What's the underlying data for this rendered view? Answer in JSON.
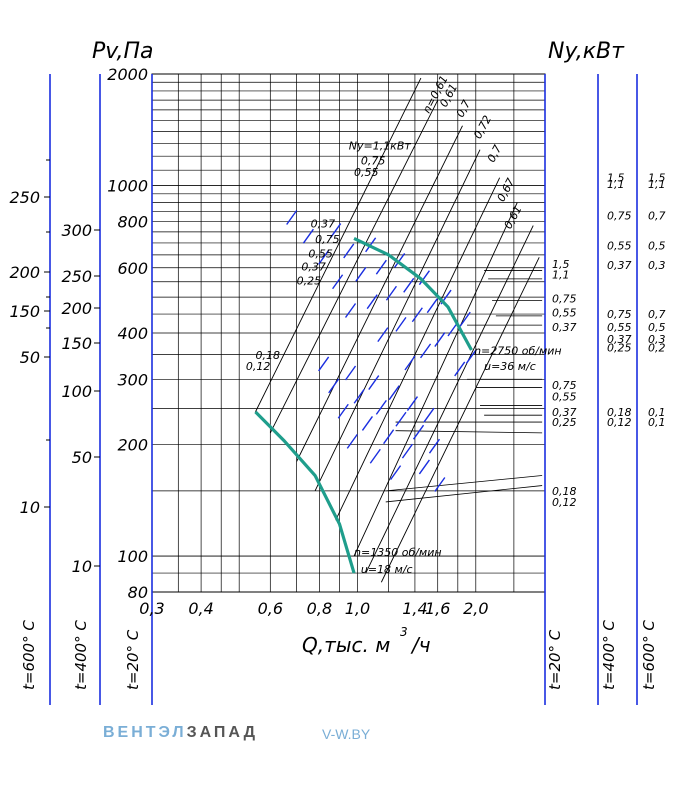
{
  "chart_data": {
    "type": "line",
    "y_title": "Pv,Па",
    "y2_title": "Ny,кВт",
    "x_title": "Q,тыс. м",
    "x_title_sup": "3",
    "x_title_tail": "/ч",
    "x_scale": "log",
    "y_scale": "log",
    "xlim": [
      0.3,
      3.0
    ],
    "ylim": [
      80,
      2000
    ],
    "x_ticks": [
      "0,3",
      "0,4",
      "0,6",
      "0,8",
      "1,0",
      "1,4",
      "1,6",
      "2,0"
    ],
    "x_tick_values": [
      0.3,
      0.4,
      0.6,
      0.8,
      1.0,
      1.4,
      1.6,
      2.0
    ],
    "y_ticks": [
      "80",
      "100",
      "200",
      "300",
      "400",
      "600",
      "800",
      "1000",
      "2000"
    ],
    "y_tick_values": [
      80,
      100,
      200,
      300,
      400,
      600,
      800,
      1000,
      2000
    ],
    "temp_scales": {
      "left_600": {
        "label": "t=600° С",
        "ticks": [
          "250",
          "200",
          "150",
          "50",
          "10"
        ]
      },
      "left_400": {
        "label": "t=400° С",
        "ticks": [
          "300",
          "250",
          "200",
          "150",
          "100",
          "50",
          "10"
        ]
      },
      "left_20": {
        "label": "t=20° С"
      },
      "right_20": {
        "label": "t=20° С"
      },
      "right_400": {
        "label": "t=400° С"
      },
      "right_600": {
        "label": "t=600° С"
      }
    },
    "power_labels": {
      "top_series": [
        "n=0,61",
        "0,61",
        "0,7",
        "0,72",
        "0,7",
        "0,67",
        "0,61"
      ],
      "top_right_column": [
        "1,5",
        "1,1",
        "0,75",
        "0,55",
        "0,37"
      ],
      "top_right_column_600": [
        "1,5",
        "1,1",
        "0,7",
        "0,5",
        "0,3"
      ],
      "mid_right_inside": [
        "1,5",
        "1,1",
        "0,75",
        "0,55",
        "0,37"
      ],
      "mid_right_column": [
        "0,75",
        "0,55",
        "0,37",
        "0,25"
      ],
      "mid_right_column_600": [
        "0,7",
        "0,5",
        "0,3",
        "0,2"
      ],
      "low_right_inside": [
        "0,75",
        "0,55",
        "0,37",
        "0,25"
      ],
      "low_right_column": [
        "0,18",
        "0,12"
      ],
      "low_right_column_600": [
        "0,1",
        "0,1"
      ],
      "bottom_right_inside": [
        "0,18",
        "0,12"
      ],
      "upper_left": [
        "Ny=1,1кВт",
        "0,75",
        "0,55"
      ],
      "middle_left": [
        "0,37",
        "0,75",
        "0,55",
        "0,37",
        "0,25"
      ],
      "lower_left": [
        "0,18",
        "0,12"
      ]
    },
    "operating_points": [
      {
        "label_n": "n=2750 об/мин",
        "label_u": "u=36 м/с"
      },
      {
        "label_n": "n=1350 об/мин",
        "label_u": "u=18 м/с"
      }
    ],
    "envelope_curves": [
      {
        "name": "n=2750 об/мин",
        "color": "#1f9e8c",
        "x": [
          0.98,
          1.2,
          1.45,
          1.7,
          1.95
        ],
        "y": [
          720,
          650,
          560,
          470,
          360
        ]
      },
      {
        "name": "n=1350 об/мин",
        "color": "#1f9e8c",
        "x": [
          0.55,
          0.65,
          0.78,
          0.9,
          0.98
        ],
        "y": [
          245,
          205,
          165,
          122,
          90
        ]
      }
    ],
    "series_color": "#1a2ee0",
    "grid_color": "#000000",
    "grid": true
  },
  "brand": {
    "part1": "ВЕНТЭЛ",
    "part2": "ЗАПАД",
    "site": "V-W.BY"
  }
}
